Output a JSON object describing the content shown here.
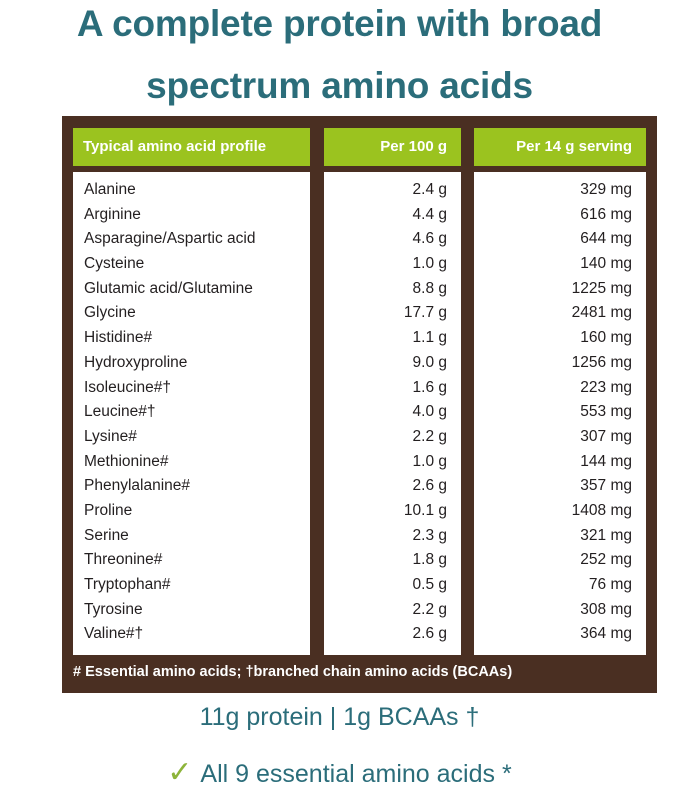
{
  "title_lines": [
    "A complete protein with broad",
    "spectrum amino acids"
  ],
  "table": {
    "headers": [
      "Typical amino acid profile",
      "Per 100 g",
      "Per 14 g serving"
    ],
    "rows": [
      [
        "Alanine",
        "2.4 g",
        "329 mg"
      ],
      [
        "Arginine",
        "4.4 g",
        "616 mg"
      ],
      [
        "Asparagine/Aspartic acid",
        "4.6 g",
        "644 mg"
      ],
      [
        "Cysteine",
        "1.0 g",
        "140 mg"
      ],
      [
        "Glutamic acid/Glutamine",
        "8.8 g",
        "1225 mg"
      ],
      [
        "Glycine",
        "17.7 g",
        "2481 mg"
      ],
      [
        "Histidine#",
        "1.1 g",
        "160 mg"
      ],
      [
        "Hydroxyproline",
        "9.0 g",
        "1256 mg"
      ],
      [
        "Isoleucine#†",
        "1.6 g",
        "223 mg"
      ],
      [
        "Leucine#†",
        "4.0 g",
        "553 mg"
      ],
      [
        "Lysine#",
        "2.2 g",
        "307 mg"
      ],
      [
        "Methionine#",
        "1.0 g",
        "144 mg"
      ],
      [
        "Phenylalanine#",
        "2.6 g",
        "357 mg"
      ],
      [
        "Proline",
        "10.1 g",
        "1408 mg"
      ],
      [
        "Serine",
        "2.3 g",
        "321 mg"
      ],
      [
        "Threonine#",
        "1.8 g",
        "252 mg"
      ],
      [
        "Tryptophan#",
        "0.5 g",
        "76 mg"
      ],
      [
        "Tyrosine",
        "2.2 g",
        "308 mg"
      ],
      [
        "Valine#†",
        "2.6 g",
        "364 mg"
      ]
    ],
    "footnote": "# Essential amino acids; †branched chain amino acids (BCAAs)"
  },
  "summary": "11g protein | 1g BCAAs †",
  "essential": {
    "icon": "checkmark-icon",
    "text": "All 9 essential amino acids *"
  },
  "colors": {
    "title": "#2b6d7a",
    "header_green": "#9bc31f",
    "frame_brown": "#4a2f22",
    "check_green": "#8db43a"
  }
}
